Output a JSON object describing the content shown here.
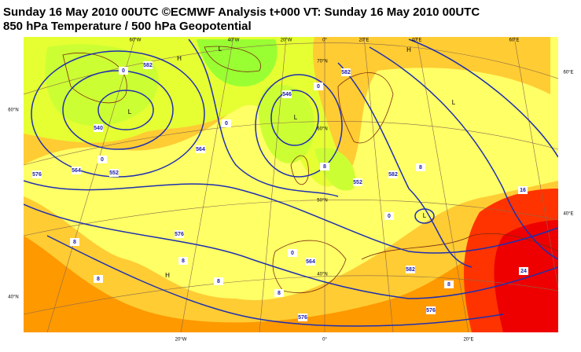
{
  "header": {
    "title": "Sunday 16 May 2010 00UTC ©ECMWF Analysis t+000 VT: Sunday 16 May 2010 00UTC",
    "subtitle": "850 hPa Temperature / 500 hPa Geopotential"
  },
  "map": {
    "top_labels": [
      "60°W",
      "40°W",
      "20°W",
      "0°",
      "20°E",
      "40°E",
      "60°E"
    ],
    "bottom_labels": [
      "20°W",
      "0°",
      "20°E"
    ],
    "left_labels": [
      "60°N",
      "40°N"
    ],
    "right_labels": [
      "60°E",
      "40°E"
    ],
    "lat_labels": [
      "70°N",
      "60°N",
      "50°N",
      "40°N"
    ],
    "contour_labels": [
      "582",
      "540",
      "552",
      "564",
      "576",
      "546",
      "582",
      "564",
      "582",
      "576",
      "564",
      "582",
      "576",
      "576",
      "552"
    ],
    "temperature_labels": [
      "0",
      "0",
      "0",
      "0",
      "8",
      "8",
      "0",
      "16",
      "8",
      "8",
      "8",
      "8",
      "8",
      "0",
      "24",
      "8"
    ],
    "centers": [
      "H",
      "L",
      "L",
      "L",
      "L",
      "H",
      "L",
      "H"
    ]
  }
}
